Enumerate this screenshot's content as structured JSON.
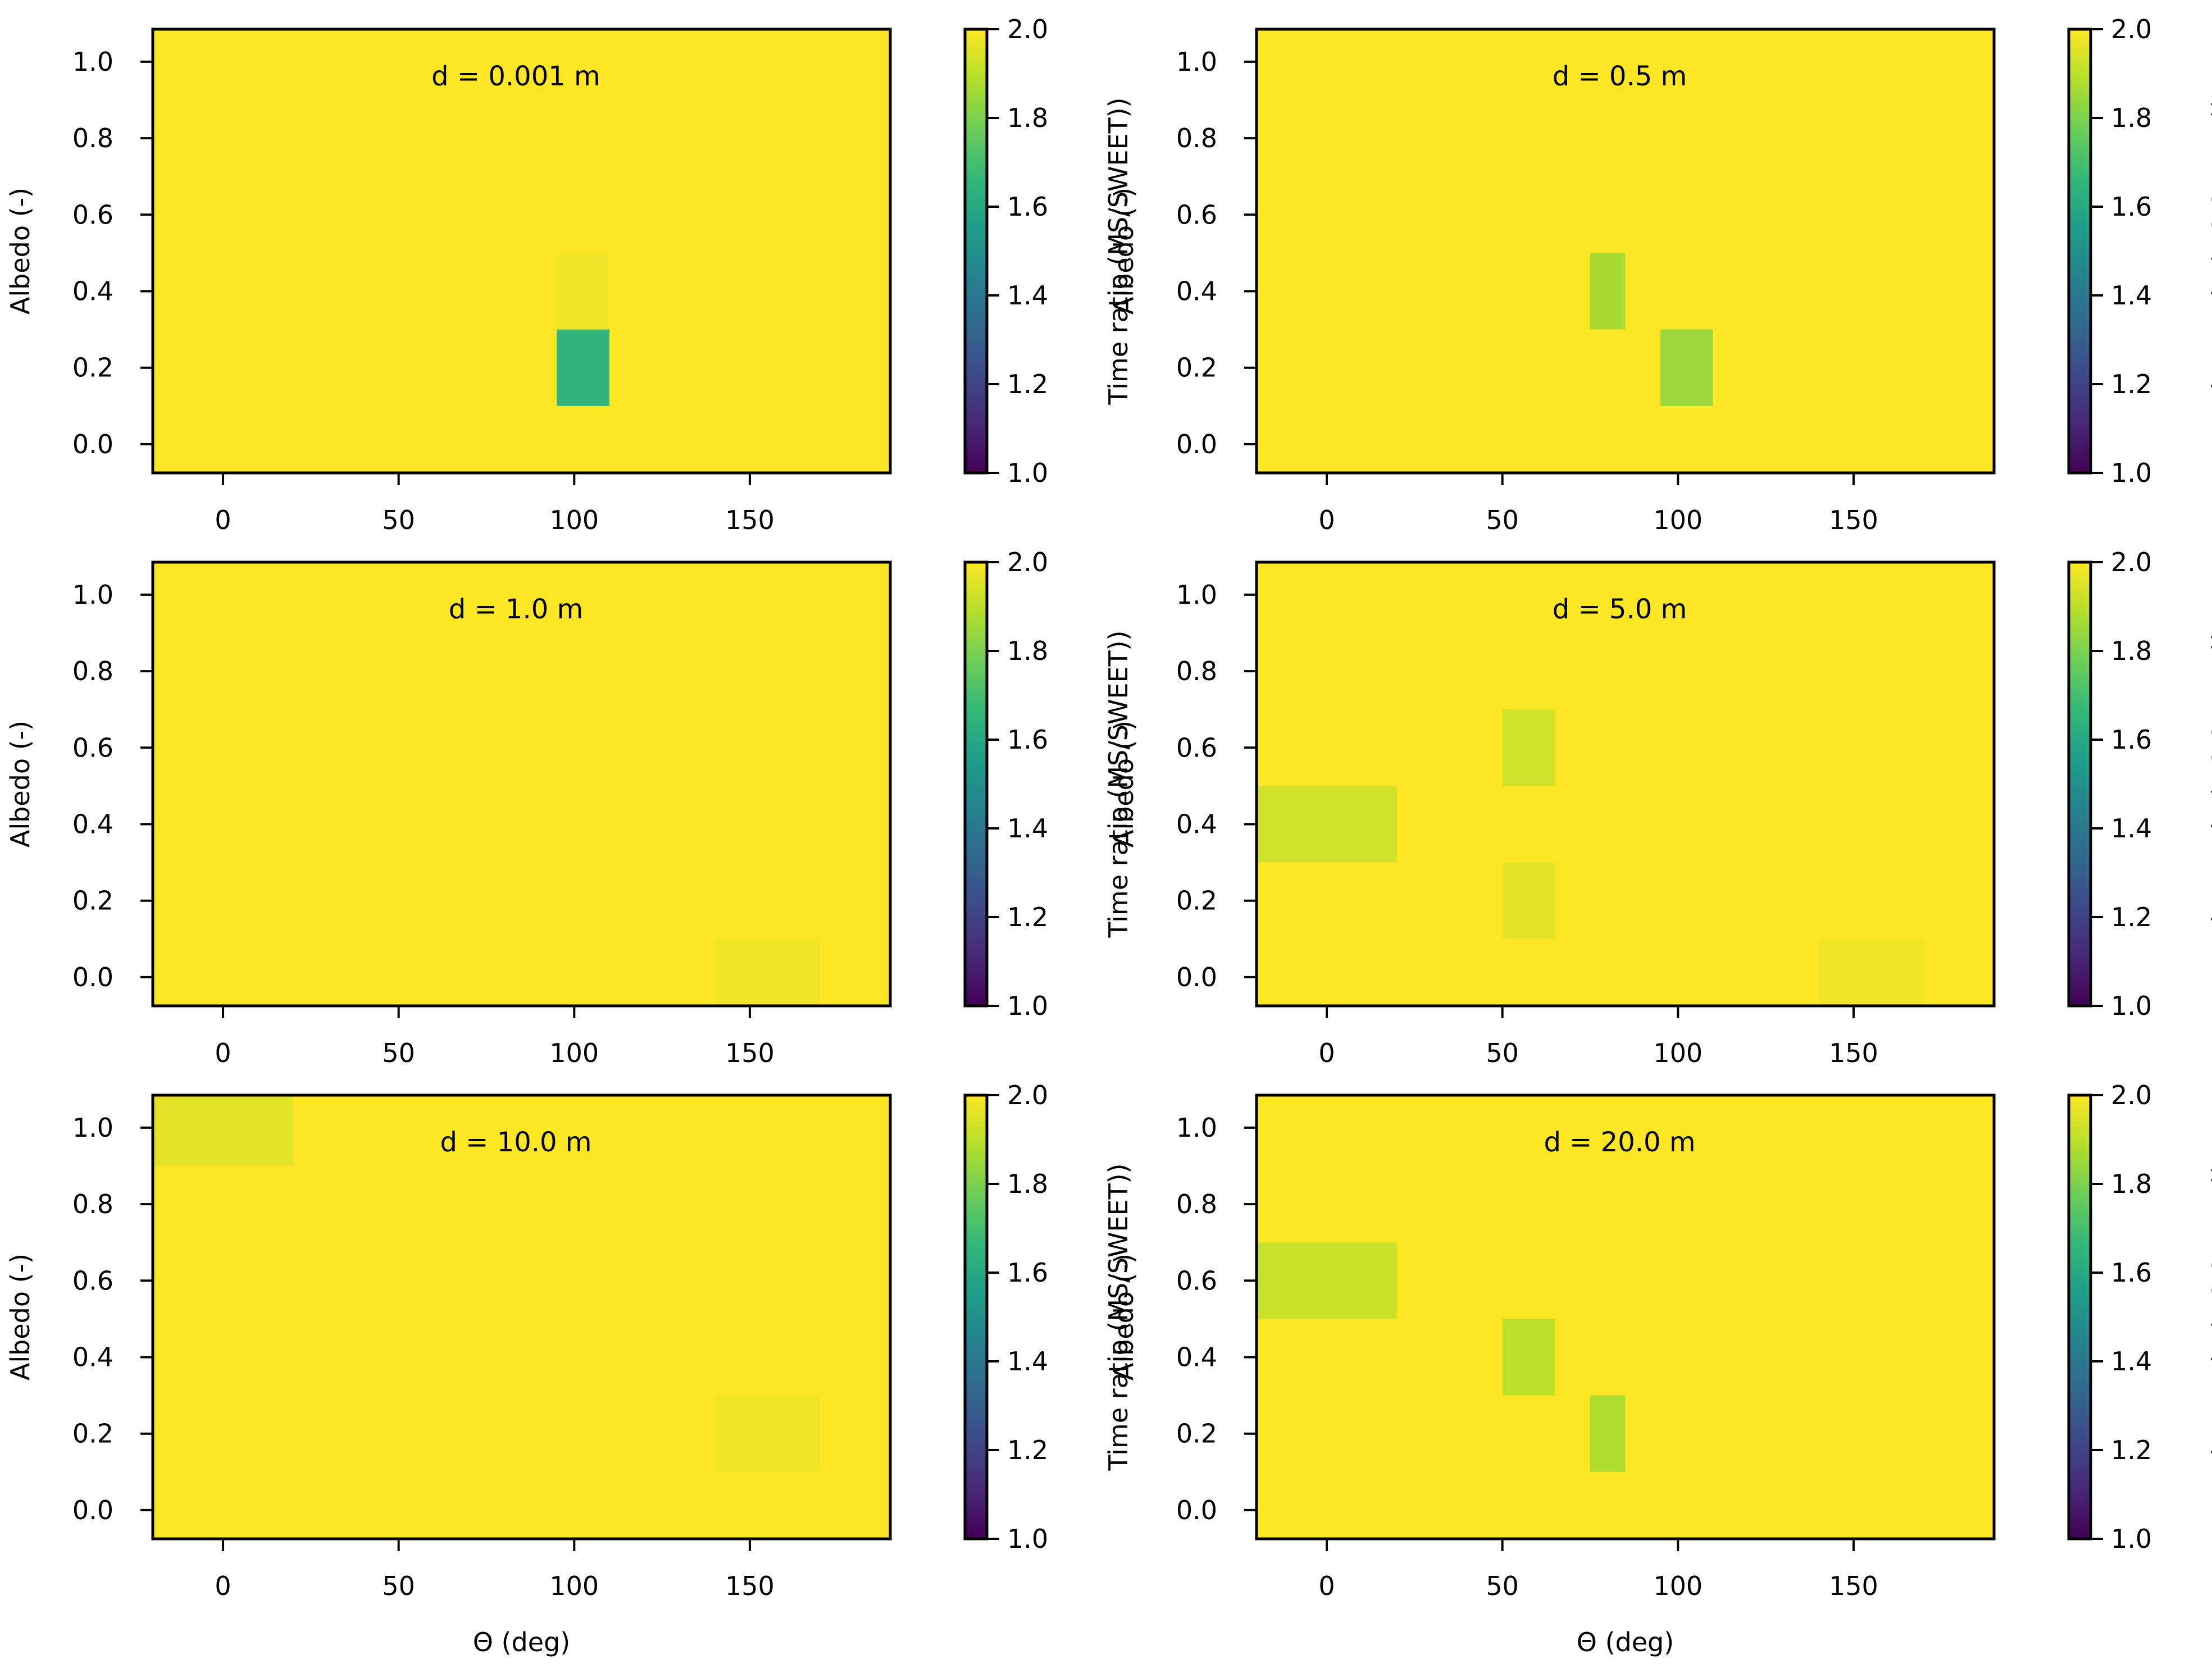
{
  "colormap": {
    "name": "viridis",
    "stops": [
      "#440154",
      "#482878",
      "#3e4989",
      "#31688e",
      "#26828e",
      "#1f9e89",
      "#35b779",
      "#6ece58",
      "#b5de2b",
      "#fde725"
    ]
  },
  "chart_data": [
    {
      "type": "heatmap",
      "title": "d = 0.001 m",
      "xlabel": "",
      "ylabel": "Albedo (-)",
      "colorbar_label": "Time ratio (MS/SWEET))",
      "xlim": [
        -20,
        190
      ],
      "ylim": [
        -0.075,
        1.085
      ],
      "clim": [
        1.0,
        2.0
      ],
      "xticks": [
        "0",
        "50",
        "100",
        "150"
      ],
      "yticks": [
        "0.0",
        "0.2",
        "0.4",
        "0.6",
        "0.8",
        "1.0"
      ],
      "cticks": [
        "1.0",
        "1.2",
        "1.4",
        "1.6",
        "1.8",
        "2.0"
      ],
      "background_value": 2.0,
      "cells": [
        {
          "theta": [
            95,
            110
          ],
          "albedo": [
            0.3,
            0.5
          ],
          "value": 1.98
        },
        {
          "theta": [
            95,
            110
          ],
          "albedo": [
            0.1,
            0.3
          ],
          "value": 1.65
        }
      ]
    },
    {
      "type": "heatmap",
      "title": "d = 0.5 m",
      "xlabel": "",
      "ylabel": "Albedo (-)",
      "colorbar_label": "Time ratio (MS/SWEET))",
      "xlim": [
        -20,
        190
      ],
      "ylim": [
        -0.075,
        1.085
      ],
      "clim": [
        1.0,
        2.0
      ],
      "xticks": [
        "0",
        "50",
        "100",
        "150"
      ],
      "yticks": [
        "0.0",
        "0.2",
        "0.4",
        "0.6",
        "0.8",
        "1.0"
      ],
      "cticks": [
        "1.0",
        "1.2",
        "1.4",
        "1.6",
        "1.8",
        "2.0"
      ],
      "background_value": 2.0,
      "cells": [
        {
          "theta": [
            75,
            85
          ],
          "albedo": [
            0.3,
            0.5
          ],
          "value": 1.87
        },
        {
          "theta": [
            95,
            110
          ],
          "albedo": [
            0.1,
            0.3
          ],
          "value": 1.85
        }
      ]
    },
    {
      "type": "heatmap",
      "title": "d = 1.0 m",
      "xlabel": "",
      "ylabel": "Albedo (-)",
      "colorbar_label": "Time ratio (MS/SWEET))",
      "xlim": [
        -20,
        190
      ],
      "ylim": [
        -0.075,
        1.085
      ],
      "clim": [
        1.0,
        2.0
      ],
      "xticks": [
        "0",
        "50",
        "100",
        "150"
      ],
      "yticks": [
        "0.0",
        "0.2",
        "0.4",
        "0.6",
        "0.8",
        "1.0"
      ],
      "cticks": [
        "1.0",
        "1.2",
        "1.4",
        "1.6",
        "1.8",
        "2.0"
      ],
      "background_value": 2.0,
      "cells": [
        {
          "theta": [
            140,
            170
          ],
          "albedo": [
            -0.075,
            0.1
          ],
          "value": 1.98
        }
      ]
    },
    {
      "type": "heatmap",
      "title": "d = 5.0 m",
      "xlabel": "",
      "ylabel": "Albedo (-)",
      "colorbar_label": "Time ratio (MS/SWEET))",
      "xlim": [
        -20,
        190
      ],
      "ylim": [
        -0.075,
        1.085
      ],
      "clim": [
        1.0,
        2.0
      ],
      "xticks": [
        "0",
        "50",
        "100",
        "150"
      ],
      "yticks": [
        "0.0",
        "0.2",
        "0.4",
        "0.6",
        "0.8",
        "1.0"
      ],
      "cticks": [
        "1.0",
        "1.2",
        "1.4",
        "1.6",
        "1.8",
        "2.0"
      ],
      "background_value": 2.0,
      "cells": [
        {
          "theta": [
            -20,
            20
          ],
          "albedo": [
            0.3,
            0.5
          ],
          "value": 1.93
        },
        {
          "theta": [
            50,
            65
          ],
          "albedo": [
            0.5,
            0.7
          ],
          "value": 1.93
        },
        {
          "theta": [
            50,
            65
          ],
          "albedo": [
            0.1,
            0.3
          ],
          "value": 1.96
        },
        {
          "theta": [
            140,
            170
          ],
          "albedo": [
            -0.075,
            0.1
          ],
          "value": 1.98
        }
      ]
    },
    {
      "type": "heatmap",
      "title": "d = 10.0 m",
      "xlabel": "Θ (deg)",
      "ylabel": "Albedo (-)",
      "colorbar_label": "Time ratio (MS/SWEET))",
      "xlim": [
        -20,
        190
      ],
      "ylim": [
        -0.075,
        1.085
      ],
      "clim": [
        1.0,
        2.0
      ],
      "xticks": [
        "0",
        "50",
        "100",
        "150"
      ],
      "yticks": [
        "0.0",
        "0.2",
        "0.4",
        "0.6",
        "0.8",
        "1.0"
      ],
      "cticks": [
        "1.0",
        "1.2",
        "1.4",
        "1.6",
        "1.8",
        "2.0"
      ],
      "background_value": 2.0,
      "cells": [
        {
          "theta": [
            -20,
            20
          ],
          "albedo": [
            0.9,
            1.085
          ],
          "value": 1.96
        },
        {
          "theta": [
            140,
            170
          ],
          "albedo": [
            0.1,
            0.3
          ],
          "value": 1.98
        }
      ]
    },
    {
      "type": "heatmap",
      "title": "d = 20.0 m",
      "xlabel": "Θ (deg)",
      "ylabel": "Albedo (-)",
      "colorbar_label": "Time ratio (MS/SWEET))",
      "xlim": [
        -20,
        190
      ],
      "ylim": [
        -0.075,
        1.085
      ],
      "clim": [
        1.0,
        2.0
      ],
      "xticks": [
        "0",
        "50",
        "100",
        "150"
      ],
      "yticks": [
        "0.0",
        "0.2",
        "0.4",
        "0.6",
        "0.8",
        "1.0"
      ],
      "cticks": [
        "1.0",
        "1.2",
        "1.4",
        "1.6",
        "1.8",
        "2.0"
      ],
      "background_value": 2.0,
      "cells": [
        {
          "theta": [
            -20,
            20
          ],
          "albedo": [
            0.5,
            0.7
          ],
          "value": 1.92
        },
        {
          "theta": [
            50,
            65
          ],
          "albedo": [
            0.3,
            0.5
          ],
          "value": 1.9
        },
        {
          "theta": [
            75,
            85
          ],
          "albedo": [
            0.1,
            0.3
          ],
          "value": 1.88
        }
      ]
    }
  ]
}
